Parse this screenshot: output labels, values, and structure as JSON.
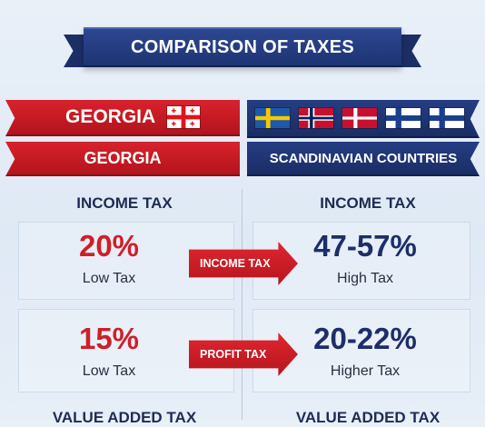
{
  "title": "COMPARISON OF TAXES",
  "left": {
    "header": "GEORGIA",
    "subheader": "GEORGIA",
    "flag_icon": "georgia-flag-icon",
    "color": "#cf1f28"
  },
  "right": {
    "subheader": "SCANDINAVIAN COUNTRIES",
    "flag_icons": [
      "sweden-flag-icon",
      "norway-flag-icon",
      "denmark-flag-icon",
      "finland-flag-icon",
      "finland-flag-icon"
    ],
    "color": "#1e2e6a"
  },
  "rows": [
    {
      "left_heading": "INCOME TAX",
      "right_heading": "INCOME TAX",
      "left_value": "20%",
      "left_note": "Low Tax",
      "arrow_label": "INCOME TAX",
      "right_value": "47-57%",
      "right_note": "High Tax"
    },
    {
      "left_value": "15%",
      "left_note": "Low Tax",
      "arrow_label": "PROFIT TAX",
      "right_value": "20-22%",
      "right_note": "Higher Tax"
    },
    {
      "left_heading": "VALUE ADDED TAX",
      "right_heading": "VALUE ADDED TAX"
    }
  ]
}
